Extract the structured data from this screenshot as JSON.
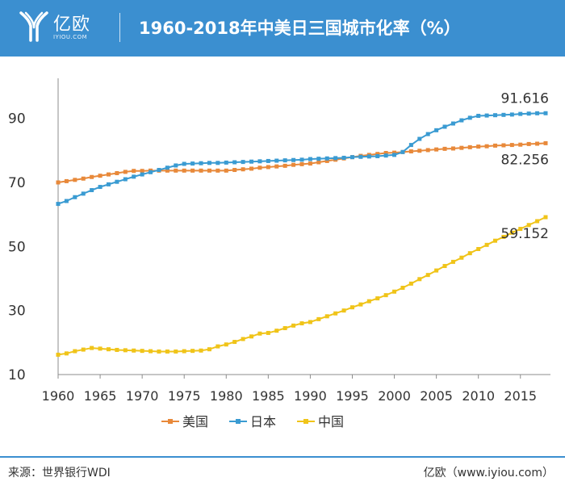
{
  "header": {
    "logo_text": "亿欧",
    "logo_sub": "IYIOU.COM",
    "title": "1960-2018年中美日三国城市化率（%）"
  },
  "footer": {
    "source": "来源：世界银行WDI",
    "credit": "亿欧（www.iyiou.com）"
  },
  "colors": {
    "header": "#3b8fd0",
    "usa": "#e8893a",
    "japan": "#3a9bd2",
    "china": "#f0c419"
  },
  "chart_data": {
    "type": "line",
    "title": "1960-2018年中美日三国城市化率（%）",
    "xlabel": "",
    "ylabel": "",
    "xlim": [
      1960,
      2018
    ],
    "ylim": [
      10,
      100
    ],
    "yticks": [
      10,
      30,
      50,
      70,
      90
    ],
    "xticks": [
      1960,
      1965,
      1970,
      1975,
      1980,
      1985,
      1990,
      1995,
      2000,
      2005,
      2010,
      2015
    ],
    "grid": false,
    "legend": "bottom",
    "x": [
      1960,
      1961,
      1962,
      1963,
      1964,
      1965,
      1966,
      1967,
      1968,
      1969,
      1970,
      1971,
      1972,
      1973,
      1974,
      1975,
      1976,
      1977,
      1978,
      1979,
      1980,
      1981,
      1982,
      1983,
      1984,
      1985,
      1986,
      1987,
      1988,
      1989,
      1990,
      1991,
      1992,
      1993,
      1994,
      1995,
      1996,
      1997,
      1998,
      1999,
      2000,
      2001,
      2002,
      2003,
      2004,
      2005,
      2006,
      2007,
      2008,
      2009,
      2010,
      2011,
      2012,
      2013,
      2014,
      2015,
      2016,
      2017,
      2018
    ],
    "series": [
      {
        "name": "美国",
        "color": "#e8893a",
        "end_label": "82.256",
        "values": [
          70.0,
          70.4,
          70.8,
          71.2,
          71.7,
          72.1,
          72.5,
          72.9,
          73.3,
          73.6,
          73.6,
          73.7,
          73.7,
          73.7,
          73.7,
          73.7,
          73.7,
          73.7,
          73.7,
          73.7,
          73.7,
          73.9,
          74.1,
          74.3,
          74.6,
          74.8,
          75.0,
          75.2,
          75.5,
          75.7,
          75.9,
          76.3,
          76.7,
          77.1,
          77.5,
          77.9,
          78.3,
          78.6,
          78.9,
          79.2,
          79.3,
          79.5,
          79.7,
          79.9,
          80.1,
          80.3,
          80.5,
          80.6,
          80.8,
          81.0,
          81.2,
          81.3,
          81.5,
          81.6,
          81.7,
          81.8,
          82.0,
          82.1,
          82.256
        ]
      },
      {
        "name": "日本",
        "color": "#3a9bd2",
        "end_label": "91.616",
        "values": [
          63.3,
          64.2,
          65.4,
          66.5,
          67.6,
          68.6,
          69.4,
          70.2,
          71.0,
          71.8,
          72.5,
          73.2,
          73.9,
          74.6,
          75.3,
          75.8,
          75.9,
          76.0,
          76.1,
          76.1,
          76.2,
          76.3,
          76.4,
          76.5,
          76.6,
          76.7,
          76.8,
          76.9,
          77.0,
          77.1,
          77.3,
          77.4,
          77.5,
          77.6,
          77.7,
          77.9,
          78.0,
          78.1,
          78.2,
          78.4,
          78.6,
          79.5,
          81.7,
          83.6,
          85.1,
          86.3,
          87.4,
          88.4,
          89.4,
          90.2,
          90.8,
          90.9,
          91.0,
          91.1,
          91.2,
          91.4,
          91.5,
          91.6,
          91.616
        ]
      },
      {
        "name": "中国",
        "color": "#f0c419",
        "end_label": "59.152",
        "values": [
          16.2,
          16.6,
          17.3,
          17.8,
          18.3,
          18.1,
          17.9,
          17.7,
          17.6,
          17.5,
          17.4,
          17.3,
          17.2,
          17.2,
          17.2,
          17.3,
          17.4,
          17.5,
          17.9,
          18.8,
          19.4,
          20.2,
          21.1,
          21.9,
          22.8,
          23.0,
          23.7,
          24.5,
          25.3,
          26.0,
          26.4,
          27.3,
          28.2,
          29.1,
          30.0,
          31.0,
          31.9,
          32.9,
          33.8,
          34.8,
          35.9,
          37.1,
          38.4,
          39.8,
          41.1,
          42.5,
          43.9,
          45.2,
          46.5,
          47.9,
          49.2,
          50.5,
          51.8,
          53.0,
          54.3,
          55.5,
          56.7,
          57.9,
          59.152
        ]
      }
    ]
  }
}
